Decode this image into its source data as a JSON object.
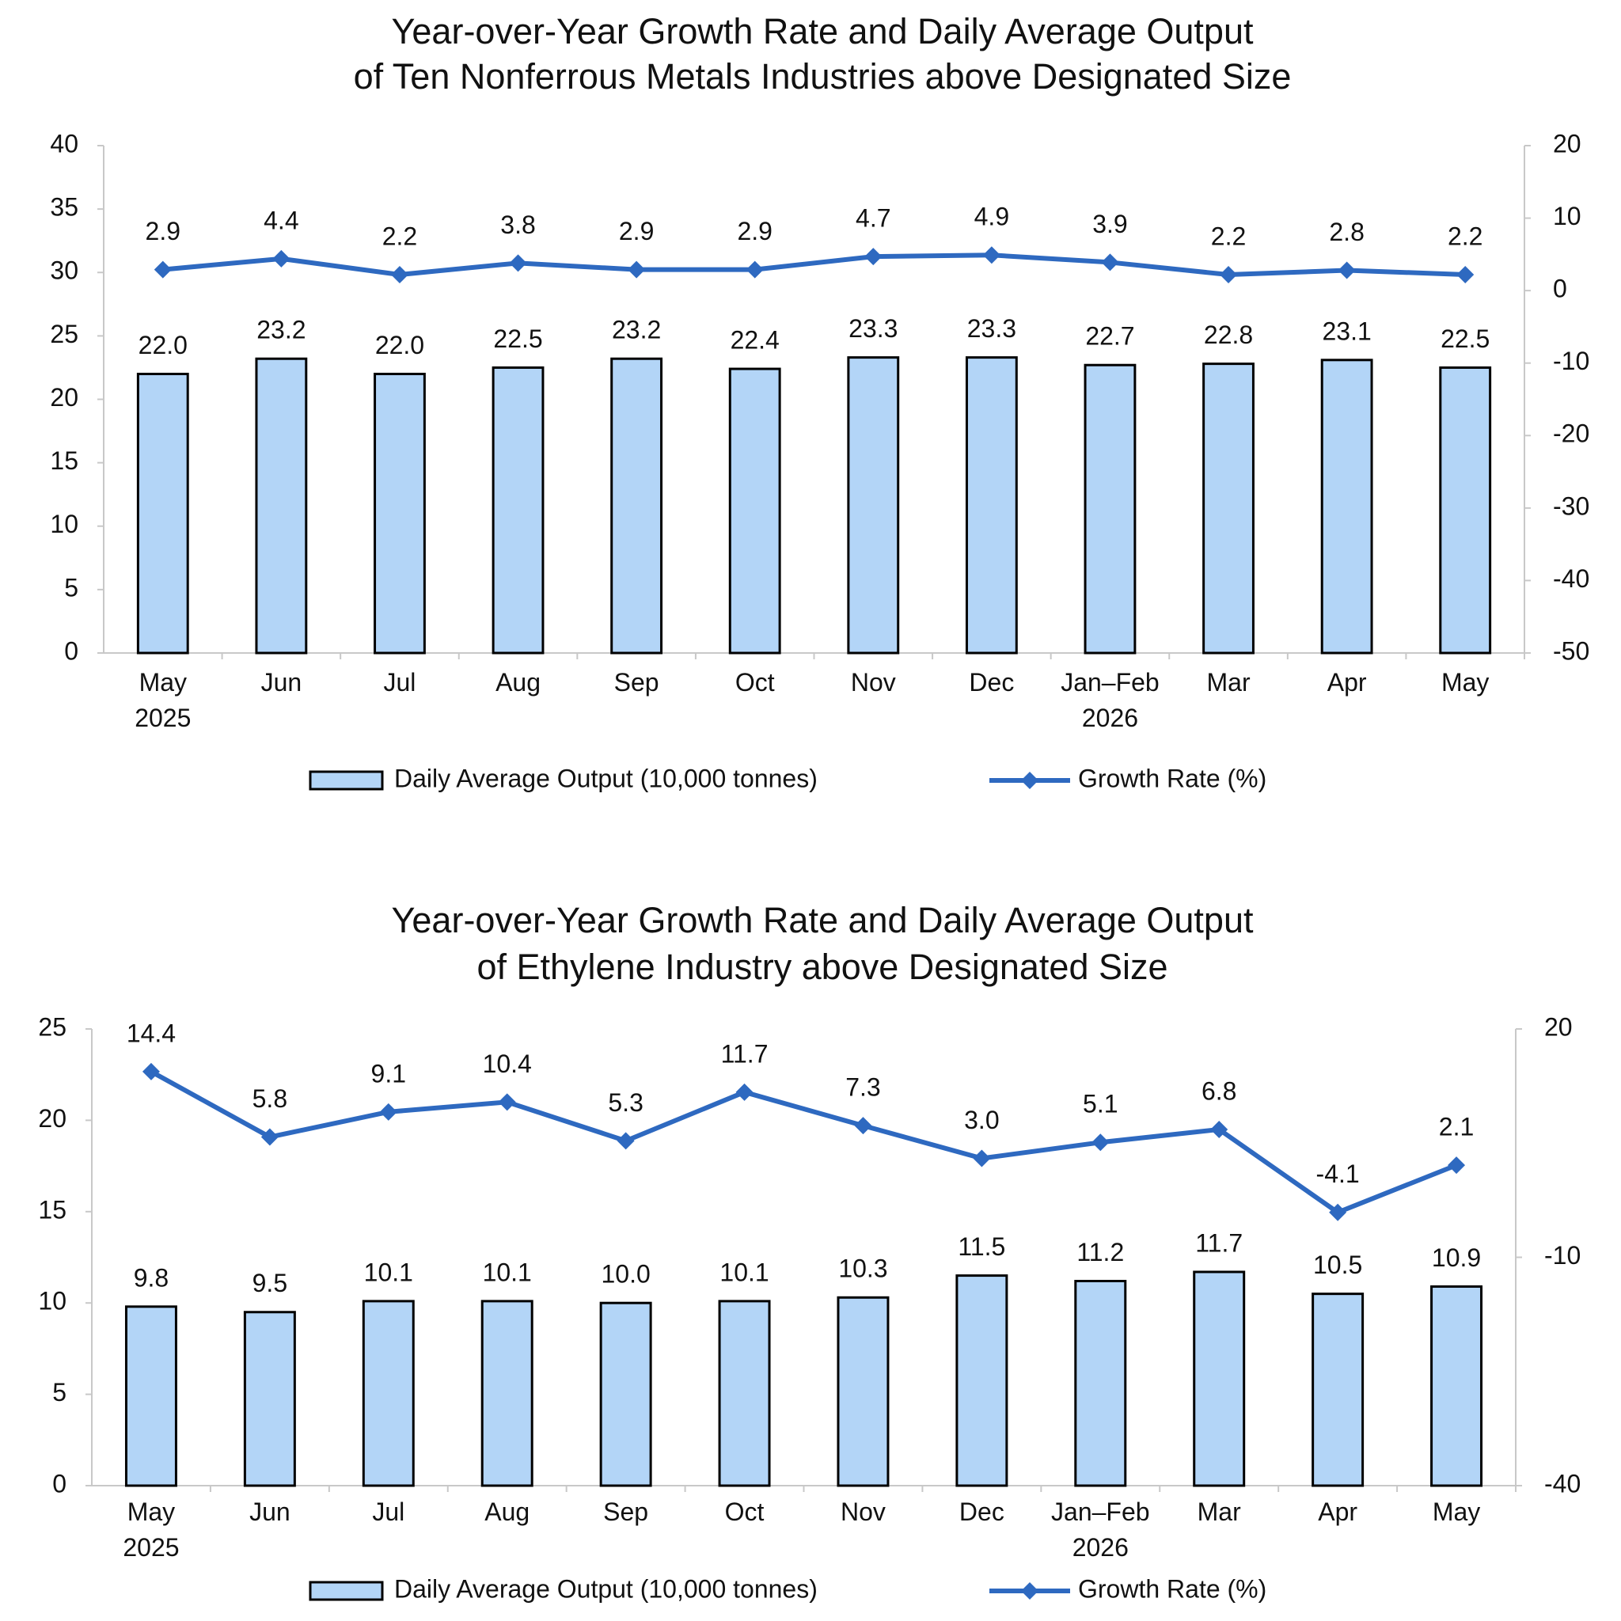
{
  "chart_data": [
    {
      "type": "combo",
      "title": [
        "Year-over-Year Growth Rate and Daily Average Output",
        "of Ten Nonferrous Metals Industries above Designated Size"
      ],
      "categories": [
        "May 2025",
        "Jun",
        "Jul",
        "Aug",
        "Sep",
        "Oct",
        "Nov",
        "Dec",
        "Jan–Feb 2026",
        "Mar",
        "Apr",
        "May"
      ],
      "ylim": [
        0,
        40
      ],
      "yticks": [
        0,
        5,
        10,
        15,
        20,
        25,
        30,
        35,
        40
      ],
      "y2lim": [
        -50,
        20
      ],
      "y2ticks": [
        -50,
        -40,
        -30,
        -20,
        -10,
        0,
        10,
        20
      ],
      "series": [
        {
          "name": "Daily Average Output (10,000 tonnes)",
          "type": "bar",
          "color": "#b3d5f7",
          "values": [
            22.0,
            23.2,
            22.0,
            22.5,
            23.2,
            22.4,
            23.3,
            23.3,
            22.7,
            22.8,
            23.1,
            22.5
          ],
          "value_labels": [
            "22.0",
            "23.2",
            "22.0",
            "22.5",
            "23.2",
            "22.4",
            "23.3",
            "23.3",
            "22.7",
            "22.8",
            "23.1",
            "22.5"
          ]
        },
        {
          "name": "Growth Rate (%)",
          "type": "line",
          "axis": "y2",
          "color": "#2e69c0",
          "values": [
            2.9,
            4.4,
            2.2,
            3.8,
            2.9,
            2.9,
            4.7,
            4.9,
            3.9,
            2.2,
            2.8,
            2.2
          ]
        }
      ]
    },
    {
      "type": "combo",
      "title": [
        "Year-over-Year Growth Rate and Daily Average Output",
        "of Ethylene Industry above Designated Size"
      ],
      "categories": [
        "May 2025",
        "Jun",
        "Jul",
        "Aug",
        "Sep",
        "Oct",
        "Nov",
        "Dec",
        "Jan–Feb 2026",
        "Mar",
        "Apr",
        "May"
      ],
      "ylim": [
        0,
        25
      ],
      "yticks": [
        0,
        5,
        10,
        15,
        20,
        25
      ],
      "y2lim": [
        -40,
        20
      ],
      "y2ticks": [
        -40,
        -10,
        20
      ],
      "series": [
        {
          "name": "Daily Average Output (10,000 tonnes)",
          "type": "bar",
          "color": "#b3d5f7",
          "values": [
            9.8,
            9.5,
            10.1,
            10.1,
            10.0,
            10.1,
            10.3,
            11.5,
            11.2,
            11.7,
            10.5,
            10.9
          ],
          "value_labels": [
            "9.8",
            "9.5",
            "10.1",
            "10.1",
            "10.0",
            "10.1",
            "10.3",
            "11.5",
            "11.2",
            "11.7",
            "10.5",
            "10.9"
          ]
        },
        {
          "name": "Growth Rate (%)",
          "type": "line",
          "axis": "y2",
          "color": "#2e69c0",
          "values": [
            14.4,
            5.8,
            9.1,
            10.4,
            5.3,
            11.7,
            7.3,
            3.0,
            5.1,
            6.8,
            -4.1,
            2.1
          ],
          "value_labels": [
            "14.4",
            "5.8",
            "9.1",
            "10.4",
            "5.3",
            "11.7",
            "7.3",
            "3.0",
            "5.1",
            "6.8",
            "-4.1",
            "2.1"
          ]
        }
      ]
    }
  ]
}
